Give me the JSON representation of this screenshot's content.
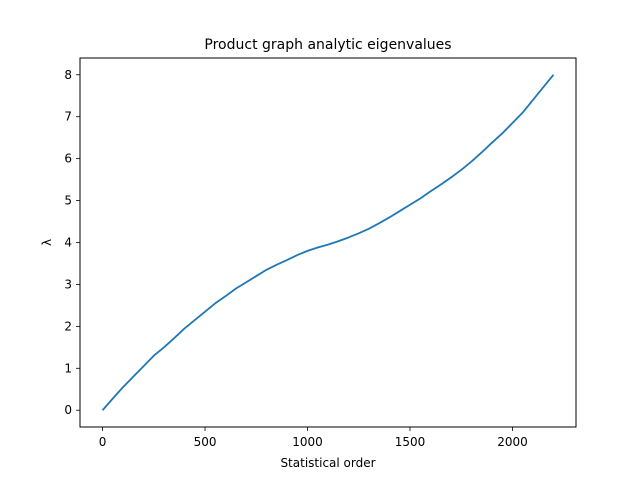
{
  "chart_data": {
    "type": "line",
    "title": "Product graph analytic eigenvalues",
    "xlabel": "Statistical order",
    "ylabel": "λ",
    "xlim": [
      -110,
      2310
    ],
    "ylim": [
      -0.4,
      8.4
    ],
    "xticks": [
      0,
      500,
      1000,
      1500,
      2000
    ],
    "yticks": [
      0,
      1,
      2,
      3,
      4,
      5,
      6,
      7,
      8
    ],
    "grid": false,
    "series_color": "#1f77b4",
    "series": [
      {
        "x": [
          0,
          50,
          100,
          150,
          200,
          250,
          300,
          350,
          400,
          450,
          500,
          550,
          600,
          650,
          700,
          750,
          800,
          850,
          900,
          950,
          1000,
          1050,
          1100,
          1150,
          1200,
          1250,
          1300,
          1350,
          1400,
          1450,
          1500,
          1550,
          1600,
          1650,
          1700,
          1750,
          1800,
          1850,
          1900,
          1950,
          2000,
          2050,
          2100,
          2150,
          2200
        ],
        "y": [
          0.0,
          0.28,
          0.55,
          0.8,
          1.05,
          1.3,
          1.5,
          1.72,
          1.95,
          2.15,
          2.35,
          2.55,
          2.72,
          2.9,
          3.05,
          3.2,
          3.35,
          3.47,
          3.58,
          3.7,
          3.8,
          3.88,
          3.95,
          4.03,
          4.12,
          4.22,
          4.33,
          4.46,
          4.6,
          4.75,
          4.9,
          5.05,
          5.22,
          5.38,
          5.55,
          5.73,
          5.93,
          6.15,
          6.38,
          6.6,
          6.85,
          7.1,
          7.4,
          7.7,
          8.0
        ]
      }
    ]
  }
}
